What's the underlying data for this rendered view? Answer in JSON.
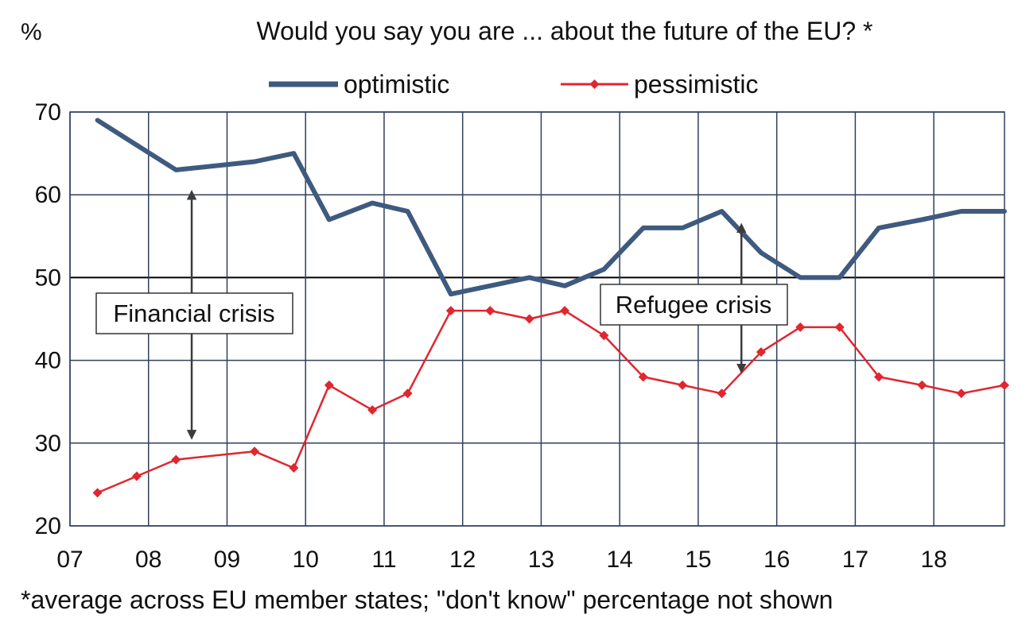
{
  "chart_data": {
    "type": "line",
    "title": "Would you say you are ... about the future of the EU? *",
    "ylabel": "%",
    "ylim": [
      20,
      70
    ],
    "yticks": [
      20,
      30,
      40,
      50,
      60,
      70
    ],
    "xlim": [
      7,
      18.9
    ],
    "xticks": [
      "07",
      "08",
      "09",
      "10",
      "11",
      "12",
      "13",
      "14",
      "15",
      "16",
      "17",
      "18"
    ],
    "grid": true,
    "legend_position": "top",
    "series": [
      {
        "name": "optimistic",
        "color": "#3f5a7f",
        "marker": "none",
        "x": [
          7.35,
          7.85,
          8.35,
          9.35,
          9.85,
          10.3,
          10.85,
          11.3,
          11.85,
          12.35,
          12.85,
          13.3,
          13.8,
          14.3,
          14.8,
          15.3,
          15.8,
          16.3,
          16.8,
          17.3,
          17.85,
          18.35,
          18.9
        ],
        "values": [
          69,
          66,
          63,
          64,
          65,
          57,
          59,
          58,
          48,
          49,
          50,
          49,
          51,
          56,
          56,
          58,
          53,
          50,
          50,
          56,
          57,
          58,
          58
        ]
      },
      {
        "name": "pessimistic",
        "color": "#e0262e",
        "marker": "diamond",
        "x": [
          7.35,
          7.85,
          8.35,
          9.35,
          9.85,
          10.3,
          10.85,
          11.3,
          11.85,
          12.35,
          12.85,
          13.3,
          13.8,
          14.3,
          14.8,
          15.3,
          15.8,
          16.3,
          16.8,
          17.3,
          17.85,
          18.35,
          18.9
        ],
        "values": [
          24,
          26,
          28,
          29,
          27,
          37,
          34,
          36,
          46,
          46,
          45,
          46,
          43,
          38,
          37,
          36,
          41,
          44,
          44,
          38,
          37,
          36,
          37
        ]
      }
    ],
    "annotations": [
      {
        "text": "Financial crisis",
        "x": 8.55,
        "arrow_from": 60,
        "arrow_to": 31
      },
      {
        "text": "Refugee crisis",
        "x": 15.55,
        "arrow_from": 56,
        "arrow_to": 39
      }
    ],
    "note": "*average across EU member states; \"don't know\" percentage not shown"
  }
}
